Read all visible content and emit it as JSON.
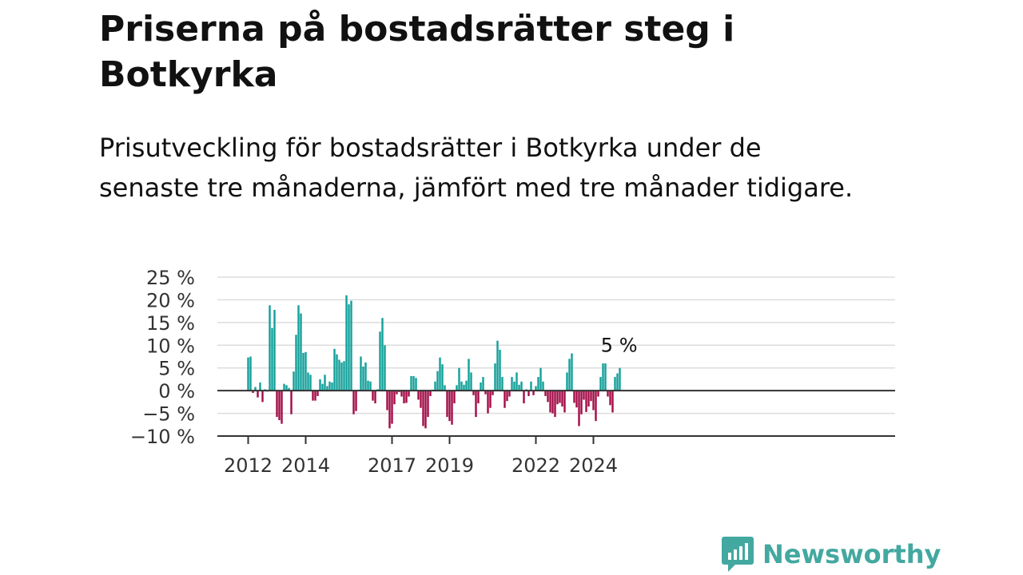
{
  "header": {
    "title": "Priserna på bostadsrätter steg i Botkyrka",
    "subtitle": "Prisutveckling för bostadsrätter i Botkyrka under de senaste tre månaderna, jämfört med tre månader tidigare."
  },
  "brand": {
    "name": "Newsworthy",
    "icon": "newsworthy-logo-icon",
    "color": "#43a8a0"
  },
  "colors": {
    "positive": "#11a099",
    "negative": "#a30a46",
    "grid": "#dddddd",
    "zero": "#333333"
  },
  "chart_data": {
    "type": "bar",
    "title": "Priserna på bostadsrätter steg i Botkyrka",
    "xlabel": "",
    "ylabel": "",
    "ylim": [
      -10,
      25
    ],
    "yticks": [
      25,
      20,
      15,
      10,
      5,
      0,
      -5,
      -10
    ],
    "ytick_labels": [
      "25 %",
      "20 %",
      "15 %",
      "10 %",
      "5 %",
      "0 %",
      "−5 %",
      "−10 %"
    ],
    "xticks": [
      {
        "label": "2012",
        "index": 0
      },
      {
        "label": "2014",
        "index": 24
      },
      {
        "label": "2017",
        "index": 60
      },
      {
        "label": "2019",
        "index": 84
      },
      {
        "label": "2022",
        "index": 120
      },
      {
        "label": "2024",
        "index": 144
      }
    ],
    "grid": true,
    "start": "2012-01",
    "frequency": "monthly",
    "annotation": {
      "text": "5 %",
      "index": 154
    },
    "values": [
      7.3,
      7.5,
      -0.5,
      0.8,
      -1.5,
      1.8,
      -2.5,
      0.3,
      -0.2,
      18.8,
      13.8,
      17.8,
      -5.8,
      -6.5,
      -7.3,
      1.5,
      1.2,
      0.6,
      -5.2,
      4.2,
      12.3,
      18.8,
      17.0,
      8.3,
      8.5,
      4.0,
      3.5,
      -2.2,
      -2.2,
      -1.2,
      2.5,
      1.5,
      3.5,
      1.0,
      2.0,
      1.8,
      9.2,
      8.0,
      6.8,
      6.2,
      6.5,
      21.0,
      19.0,
      19.8,
      -5.2,
      -4.5,
      0.2,
      7.5,
      5.3,
      6.2,
      2.2,
      2.0,
      -2.2,
      -2.8,
      0.3,
      13.0,
      16.0,
      10.0,
      -4.3,
      -8.3,
      -7.3,
      -3.0,
      -0.8,
      -0.3,
      -1.3,
      -2.8,
      -2.7,
      -1.3,
      3.2,
      3.2,
      2.8,
      -2.0,
      -3.8,
      -7.8,
      -8.3,
      -5.8,
      -1.2,
      0.2,
      2.0,
      4.3,
      7.3,
      5.8,
      1.2,
      -5.8,
      -6.7,
      -7.5,
      -2.8,
      1.2,
      5.0,
      2.0,
      1.3,
      2.2,
      7.0,
      4.0,
      -1.0,
      -5.8,
      -2.8,
      1.8,
      3.0,
      -0.8,
      -5.0,
      -3.8,
      -1.0,
      6.0,
      11.0,
      9.0,
      3.0,
      -3.8,
      -2.3,
      -1.3,
      3.0,
      2.0,
      4.0,
      1.3,
      2.0,
      -2.8,
      0.3,
      -1.2,
      2.0,
      -1.0,
      1.0,
      3.0,
      5.0,
      2.0,
      -1.2,
      -2.5,
      -4.8,
      -5.0,
      -5.8,
      -3.0,
      -2.7,
      -3.5,
      -4.8,
      4.0,
      7.0,
      8.2,
      -2.7,
      -3.7,
      -7.8,
      -5.2,
      -2.0,
      -4.7,
      -3.5,
      -2.3,
      -4.3,
      -6.7,
      -1.3,
      3.0,
      6.0,
      6.0,
      -1.3,
      -3.2,
      -4.8,
      3.0,
      3.8,
      5.0
    ]
  }
}
